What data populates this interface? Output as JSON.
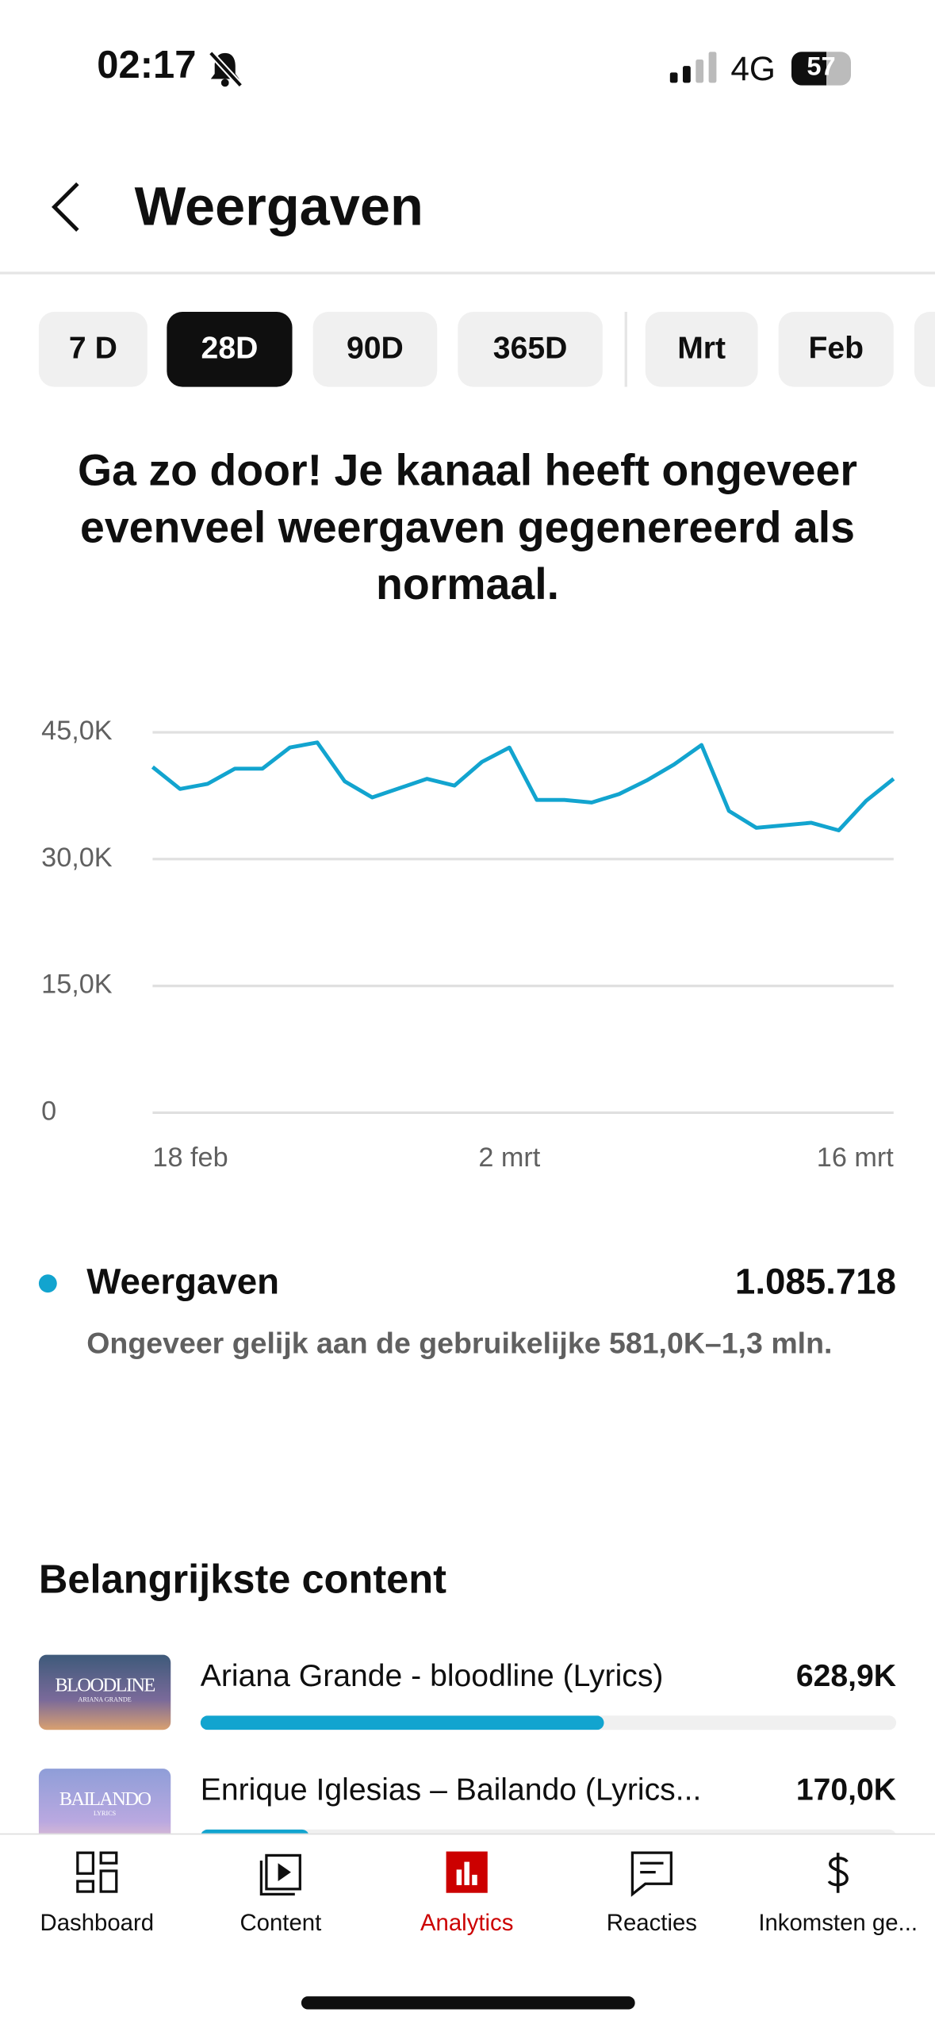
{
  "status": {
    "time": "02:17",
    "network": "4G",
    "battery": "57"
  },
  "header": {
    "title": "Weergaven"
  },
  "tabs": {
    "items": [
      "7 D",
      "28D",
      "90D",
      "365D",
      "Mrt",
      "Feb"
    ],
    "selected": 1
  },
  "headline": "Ga zo door! Je kanaal heeft ongeveer evenveel weergaven gegenereerd als normaal.",
  "chart_data": {
    "type": "line",
    "categories": [
      "18 feb",
      null,
      null,
      null,
      null,
      null,
      null,
      null,
      null,
      null,
      null,
      null,
      null,
      "2 mrt",
      null,
      null,
      null,
      null,
      null,
      null,
      null,
      null,
      null,
      null,
      null,
      null,
      null,
      "16 mrt"
    ],
    "series": [
      {
        "name": "Weergaven",
        "color": "#12a4cf",
        "values": [
          40900,
          38300,
          38900,
          40700,
          40700,
          43200,
          43800,
          39200,
          37300,
          38400,
          39500,
          38700,
          41500,
          43200,
          37000,
          37000,
          36700,
          37700,
          39300,
          41200,
          43500,
          35700,
          33700,
          34000,
          34300,
          33400,
          36900,
          39500
        ]
      }
    ],
    "ylim": [
      0,
      45000
    ],
    "yticks": [
      0,
      {
        "value": 15000,
        "label": "15,0K"
      },
      {
        "value": 30000,
        "label": "30,0K"
      },
      {
        "value": 45000,
        "label": "45,0K"
      }
    ],
    "grid": true
  },
  "summary": {
    "total": 1085718,
    "total_label": "1.085.718",
    "note": "Ongeveer gelijk aan de gebruikelijke 581,0K–1,3 mln."
  },
  "top_content": {
    "title": "Belangrijkste content",
    "items": [
      {
        "thumb": "BLOODLINE",
        "thumb_sub": "ARIANA GRANDE",
        "title": "Ariana Grande - bloodline (Lyrics)",
        "views": 628900,
        "views_label": "628,9K"
      },
      {
        "thumb": "BAILANDO",
        "thumb_sub": "LYRICS",
        "title": "Enrique Iglesias – Bailando (Lyrics...",
        "views": 170000,
        "views_label": "170,0K"
      }
    ]
  },
  "nav": {
    "items": [
      "Dashboard",
      "Content",
      "Analytics",
      "Reacties",
      "Inkomsten ge..."
    ],
    "selected": 2
  }
}
